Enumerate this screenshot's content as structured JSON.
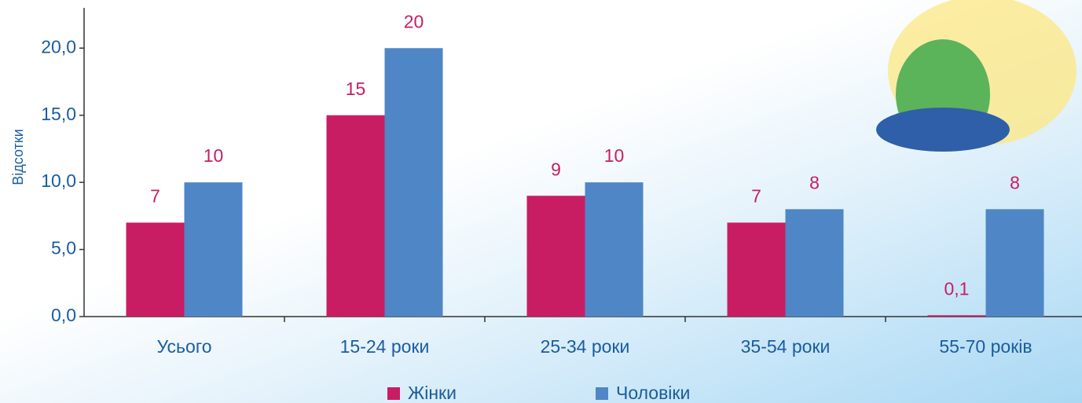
{
  "chart_data": {
    "type": "bar",
    "y_label": "Відсотки",
    "categories": [
      "Усього",
      "15-24 роки",
      "25-34 роки",
      "35-54 роки",
      "55-70 років"
    ],
    "series": [
      {
        "name": "Жінки",
        "color": "#c81d63",
        "values": [
          7,
          15,
          9,
          7,
          0.1
        ],
        "value_labels": [
          "7",
          "15",
          "9",
          "7",
          "0,1"
        ]
      },
      {
        "name": "Чоловіки",
        "color": "#4f86c6",
        "values": [
          10,
          20,
          10,
          8,
          8
        ]
      }
    ],
    "ylim": [
      0,
      23
    ],
    "yticks": [
      {
        "value": 0,
        "label": "0,0"
      },
      {
        "value": 5,
        "label": "5,0"
      },
      {
        "value": 10,
        "label": "10,0"
      },
      {
        "value": 15,
        "label": "15,0"
      },
      {
        "value": 20,
        "label": "20,0"
      }
    ],
    "label_color": "#c81d63",
    "axis_color": "#1a5c9e"
  }
}
